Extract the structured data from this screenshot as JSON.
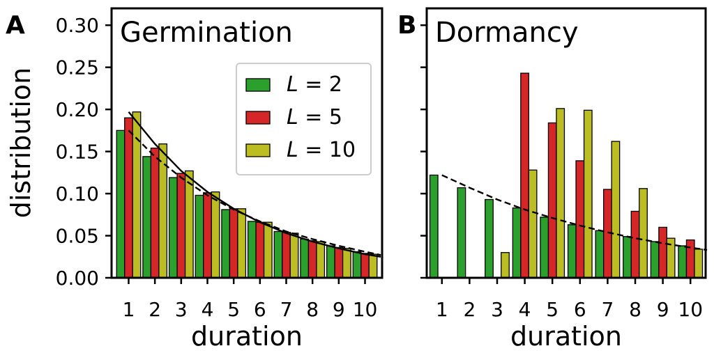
{
  "chart_data": [
    {
      "type": "bar",
      "panel_letter": "A",
      "title": "Germination",
      "xlabel": "duration",
      "ylabel": "distribution",
      "categories": [
        "1",
        "2",
        "3",
        "4",
        "5",
        "6",
        "7",
        "8",
        "9",
        "10"
      ],
      "yticks": [
        "0.00",
        "0.05",
        "0.10",
        "0.15",
        "0.20",
        "0.25",
        "0.30"
      ],
      "ylim": [
        0,
        0.32
      ],
      "legend": {
        "position": "upper-right-inside"
      },
      "series": [
        {
          "name": "L = 2",
          "color": "#2ca02c",
          "values": [
            0.175,
            0.144,
            0.119,
            0.098,
            0.081,
            0.067,
            0.055,
            0.046,
            0.038,
            0.031
          ]
        },
        {
          "name": "L = 5",
          "color": "#d62728",
          "values": [
            0.19,
            0.154,
            0.124,
            0.101,
            0.082,
            0.066,
            0.054,
            0.044,
            0.036,
            0.029
          ]
        },
        {
          "name": "L = 10",
          "color": "#bcbd22",
          "values": [
            0.197,
            0.159,
            0.127,
            0.102,
            0.082,
            0.066,
            0.053,
            0.043,
            0.035,
            0.028
          ]
        }
      ],
      "curves": [
        {
          "style": "solid",
          "x": [
            1,
            2,
            3,
            4,
            5,
            6,
            7,
            8,
            9,
            10,
            10.6
          ],
          "y": [
            0.197,
            0.159,
            0.127,
            0.102,
            0.082,
            0.066,
            0.053,
            0.043,
            0.035,
            0.028,
            0.025
          ]
        },
        {
          "style": "dashed",
          "x": [
            1,
            2,
            3,
            4,
            5,
            6,
            7,
            8,
            9,
            10,
            10.6
          ],
          "y": [
            0.175,
            0.144,
            0.119,
            0.098,
            0.081,
            0.067,
            0.055,
            0.046,
            0.038,
            0.031,
            0.027
          ]
        }
      ]
    },
    {
      "type": "bar",
      "panel_letter": "B",
      "title": "Dormancy",
      "xlabel": "duration",
      "ylabel": "",
      "categories": [
        "1",
        "2",
        "3",
        "4",
        "5",
        "6",
        "7",
        "8",
        "9",
        "10"
      ],
      "ylim": [
        0,
        0.32
      ],
      "series": [
        {
          "name": "L = 2",
          "color": "#2ca02c",
          "values": [
            0.122,
            0.107,
            0.093,
            0.083,
            0.072,
            0.063,
            0.056,
            0.049,
            0.043,
            0.038
          ]
        },
        {
          "name": "L = 5",
          "color": "#d62728",
          "values": [
            0,
            0,
            0,
            0.243,
            0.184,
            0.139,
            0.105,
            0.079,
            0.06,
            0.045
          ]
        },
        {
          "name": "L = 10",
          "color": "#bcbd22",
          "values": [
            0,
            0,
            0.03,
            0.128,
            0.201,
            0.199,
            0.162,
            0.106,
            0.047,
            0.034
          ]
        }
      ],
      "curves": [
        {
          "style": "dashed",
          "x": [
            1,
            2,
            3,
            4,
            5,
            6,
            7,
            8,
            9,
            10,
            10.6
          ],
          "y": [
            0.122,
            0.107,
            0.093,
            0.081,
            0.071,
            0.062,
            0.054,
            0.047,
            0.041,
            0.036,
            0.033
          ]
        }
      ]
    }
  ]
}
